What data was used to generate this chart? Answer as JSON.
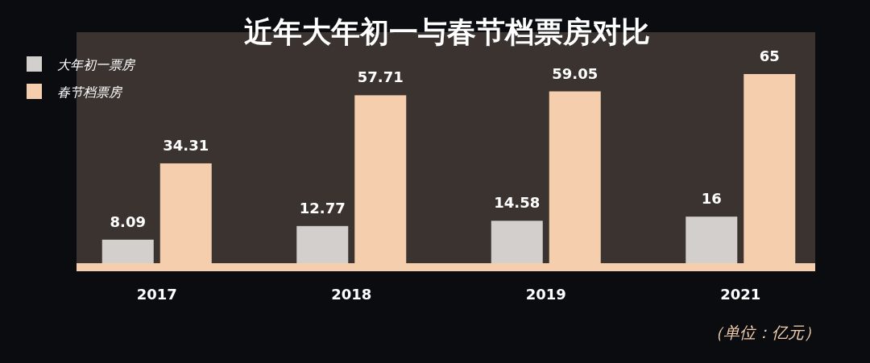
{
  "chart_data": {
    "type": "bar",
    "title": "近年大年初一与春节档票房对比",
    "categories": [
      "2017",
      "2018",
      "2019",
      "2021"
    ],
    "series": [
      {
        "name": "大年初一票房",
        "color": "#d3cfcc",
        "values": [
          8.09,
          12.77,
          14.58,
          16
        ]
      },
      {
        "name": "春节档票房",
        "color": "#f5cfad",
        "values": [
          34.31,
          57.71,
          59.05,
          65
        ]
      }
    ],
    "data_labels": true,
    "legend": "top left",
    "annotations": [
      "（单位：亿元）"
    ]
  }
}
